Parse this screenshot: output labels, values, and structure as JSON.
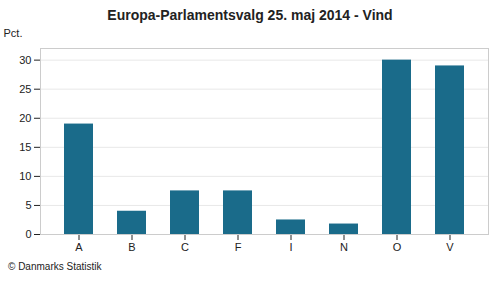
{
  "chart_data": {
    "type": "bar",
    "title": "Europa-Parlamentsvalg 25. maj 2014 - Vind",
    "categories": [
      "A",
      "B",
      "C",
      "F",
      "I",
      "N",
      "O",
      "V"
    ],
    "values": [
      19.0,
      4.0,
      7.5,
      7.5,
      2.5,
      1.8,
      30.0,
      29.0
    ],
    "color": "#1a6b8a",
    "ylabel": "Pct.",
    "ylim": [
      0,
      32
    ],
    "yticks": [
      0,
      5,
      10,
      15,
      20,
      25,
      30
    ],
    "grid": true,
    "caption": "© Danmarks Statistik"
  }
}
